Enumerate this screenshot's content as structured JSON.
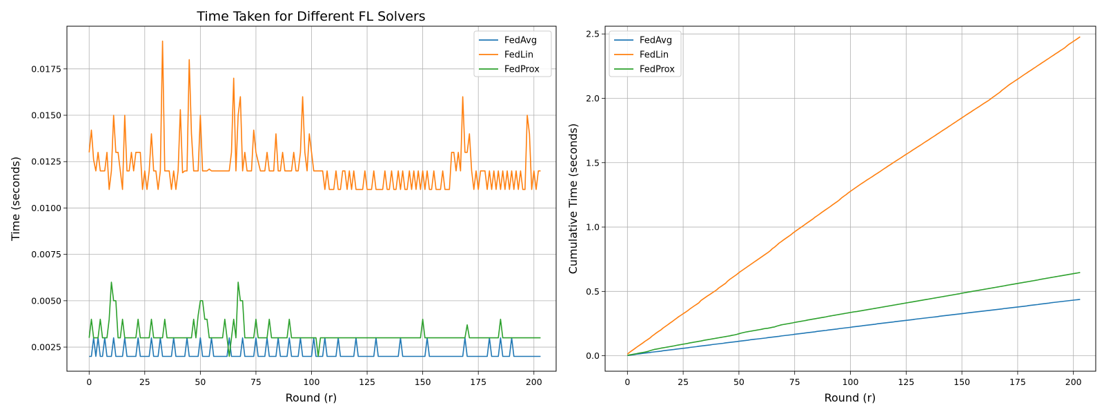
{
  "chart_data": [
    {
      "type": "line",
      "title": "Time Taken for Different FL Solvers",
      "xlabel": "Round (r)",
      "ylabel": "Time (seconds)",
      "xlim": [
        -10,
        210
      ],
      "ylim": [
        0.0012,
        0.0198
      ],
      "xticks": [
        0,
        25,
        50,
        75,
        100,
        125,
        150,
        175,
        200
      ],
      "xtick_labels": [
        "0",
        "25",
        "50",
        "75",
        "100",
        "125",
        "150",
        "175",
        "200"
      ],
      "yticks": [
        0.0025,
        0.005,
        0.0075,
        0.01,
        0.0125,
        0.015,
        0.0175
      ],
      "ytick_labels": [
        "0.0025",
        "0.0050",
        "0.0075",
        "0.0100",
        "0.0125",
        "0.0150",
        "0.0175"
      ],
      "grid": true,
      "legend": "top-right",
      "series": [
        {
          "name": "FedAvg",
          "color": "#1f77b4",
          "x_start": 0,
          "values": [
            0.002,
            0.002,
            0.003,
            0.002,
            0.003,
            0.002,
            0.002,
            0.003,
            0.002,
            0.002,
            0.002,
            0.003,
            0.002,
            0.002,
            0.002,
            0.002,
            0.003,
            0.002,
            0.002,
            0.002,
            0.002,
            0.002,
            0.003,
            0.002,
            0.002,
            0.002,
            0.002,
            0.002,
            0.003,
            0.002,
            0.002,
            0.002,
            0.003,
            0.002,
            0.002,
            0.002,
            0.002,
            0.002,
            0.003,
            0.002,
            0.002,
            0.002,
            0.002,
            0.002,
            0.003,
            0.002,
            0.002,
            0.002,
            0.002,
            0.002,
            0.003,
            0.002,
            0.002,
            0.002,
            0.002,
            0.003,
            0.002,
            0.002,
            0.002,
            0.002,
            0.002,
            0.002,
            0.002,
            0.003,
            0.002,
            0.002,
            0.002,
            0.002,
            0.002,
            0.003,
            0.002,
            0.002,
            0.002,
            0.002,
            0.002,
            0.003,
            0.002,
            0.002,
            0.002,
            0.002,
            0.003,
            0.002,
            0.002,
            0.002,
            0.002,
            0.003,
            0.002,
            0.002,
            0.002,
            0.002,
            0.003,
            0.002,
            0.002,
            0.002,
            0.002,
            0.003,
            0.002,
            0.002,
            0.002,
            0.002,
            0.002,
            0.003,
            0.002,
            0.002,
            0.002,
            0.002,
            0.003,
            0.002,
            0.002,
            0.002,
            0.002,
            0.002,
            0.003,
            0.002,
            0.002,
            0.002,
            0.002,
            0.002,
            0.002,
            0.002,
            0.003,
            0.002,
            0.002,
            0.002,
            0.002,
            0.002,
            0.002,
            0.002,
            0.002,
            0.003,
            0.002,
            0.002,
            0.002,
            0.002,
            0.002,
            0.002,
            0.002,
            0.002,
            0.002,
            0.002,
            0.003,
            0.002,
            0.002,
            0.002,
            0.002,
            0.002,
            0.002,
            0.002,
            0.002,
            0.002,
            0.002,
            0.002,
            0.003,
            0.002,
            0.002,
            0.002,
            0.002,
            0.002,
            0.002,
            0.002,
            0.002,
            0.002,
            0.002,
            0.002,
            0.002,
            0.002,
            0.002,
            0.002,
            0.002,
            0.003,
            0.002,
            0.002,
            0.002,
            0.002,
            0.002,
            0.002,
            0.002,
            0.002,
            0.002,
            0.002,
            0.003,
            0.002,
            0.002,
            0.002,
            0.002,
            0.003,
            0.002,
            0.002,
            0.002,
            0.002,
            0.003,
            0.002,
            0.002,
            0.002,
            0.002,
            0.002,
            0.002,
            0.002,
            0.002,
            0.002,
            0.002,
            0.002,
            0.002,
            0.002
          ]
        },
        {
          "name": "FedLin",
          "color": "#ff7f0e",
          "x_start": 0,
          "values": [
            0.013,
            0.0142,
            0.0126,
            0.012,
            0.013,
            0.012,
            0.012,
            0.012,
            0.013,
            0.011,
            0.012,
            0.015,
            0.013,
            0.013,
            0.012,
            0.011,
            0.015,
            0.012,
            0.012,
            0.013,
            0.012,
            0.013,
            0.013,
            0.013,
            0.011,
            0.012,
            0.011,
            0.012,
            0.014,
            0.012,
            0.012,
            0.011,
            0.012,
            0.019,
            0.012,
            0.012,
            0.012,
            0.011,
            0.012,
            0.011,
            0.012,
            0.0153,
            0.0119,
            0.012,
            0.012,
            0.018,
            0.014,
            0.012,
            0.012,
            0.012,
            0.015,
            0.012,
            0.012,
            0.012,
            0.0121,
            0.012,
            0.012,
            0.012,
            0.012,
            0.012,
            0.012,
            0.012,
            0.012,
            0.012,
            0.013,
            0.017,
            0.012,
            0.015,
            0.016,
            0.012,
            0.013,
            0.012,
            0.012,
            0.012,
            0.0142,
            0.013,
            0.0125,
            0.012,
            0.012,
            0.012,
            0.013,
            0.012,
            0.012,
            0.012,
            0.014,
            0.012,
            0.012,
            0.013,
            0.012,
            0.012,
            0.012,
            0.012,
            0.013,
            0.012,
            0.012,
            0.013,
            0.016,
            0.013,
            0.012,
            0.014,
            0.013,
            0.012,
            0.012,
            0.012,
            0.012,
            0.012,
            0.011,
            0.012,
            0.011,
            0.011,
            0.011,
            0.012,
            0.011,
            0.011,
            0.012,
            0.012,
            0.011,
            0.012,
            0.011,
            0.012,
            0.011,
            0.011,
            0.011,
            0.011,
            0.012,
            0.011,
            0.011,
            0.011,
            0.012,
            0.011,
            0.011,
            0.011,
            0.011,
            0.012,
            0.011,
            0.011,
            0.012,
            0.011,
            0.011,
            0.012,
            0.011,
            0.012,
            0.011,
            0.011,
            0.012,
            0.011,
            0.012,
            0.011,
            0.012,
            0.011,
            0.012,
            0.011,
            0.012,
            0.011,
            0.011,
            0.012,
            0.011,
            0.011,
            0.011,
            0.012,
            0.011,
            0.011,
            0.011,
            0.013,
            0.013,
            0.012,
            0.013,
            0.012,
            0.016,
            0.013,
            0.013,
            0.014,
            0.012,
            0.011,
            0.012,
            0.011,
            0.012,
            0.012,
            0.012,
            0.011,
            0.012,
            0.011,
            0.012,
            0.011,
            0.012,
            0.011,
            0.012,
            0.011,
            0.012,
            0.011,
            0.012,
            0.011,
            0.012,
            0.011,
            0.012,
            0.011,
            0.011,
            0.015,
            0.014,
            0.011,
            0.012,
            0.011,
            0.012,
            0.012
          ]
        },
        {
          "name": "FedProx",
          "color": "#2ca02c",
          "x_start": 0,
          "values": [
            0.003,
            0.004,
            0.003,
            0.003,
            0.003,
            0.004,
            0.003,
            0.003,
            0.003,
            0.004,
            0.006,
            0.005,
            0.005,
            0.003,
            0.003,
            0.004,
            0.003,
            0.003,
            0.003,
            0.003,
            0.003,
            0.003,
            0.004,
            0.003,
            0.003,
            0.003,
            0.003,
            0.003,
            0.004,
            0.003,
            0.003,
            0.003,
            0.003,
            0.003,
            0.004,
            0.003,
            0.003,
            0.003,
            0.003,
            0.003,
            0.003,
            0.003,
            0.003,
            0.003,
            0.003,
            0.003,
            0.003,
            0.004,
            0.003,
            0.0042,
            0.005,
            0.005,
            0.004,
            0.004,
            0.003,
            0.003,
            0.003,
            0.003,
            0.003,
            0.003,
            0.003,
            0.004,
            0.003,
            0.002,
            0.003,
            0.004,
            0.003,
            0.006,
            0.005,
            0.005,
            0.003,
            0.003,
            0.003,
            0.003,
            0.003,
            0.004,
            0.003,
            0.003,
            0.003,
            0.003,
            0.003,
            0.004,
            0.003,
            0.003,
            0.003,
            0.003,
            0.003,
            0.003,
            0.003,
            0.003,
            0.004,
            0.003,
            0.003,
            0.003,
            0.003,
            0.003,
            0.003,
            0.003,
            0.003,
            0.003,
            0.003,
            0.003,
            0.003,
            0.002,
            0.003,
            0.003,
            0.003,
            0.003,
            0.003,
            0.003,
            0.003,
            0.003,
            0.003,
            0.003,
            0.003,
            0.003,
            0.003,
            0.003,
            0.003,
            0.003,
            0.003,
            0.003,
            0.003,
            0.003,
            0.003,
            0.003,
            0.003,
            0.003,
            0.003,
            0.003,
            0.003,
            0.003,
            0.003,
            0.003,
            0.003,
            0.003,
            0.003,
            0.003,
            0.003,
            0.003,
            0.003,
            0.003,
            0.003,
            0.003,
            0.003,
            0.003,
            0.003,
            0.003,
            0.003,
            0.003,
            0.004,
            0.003,
            0.003,
            0.003,
            0.003,
            0.003,
            0.003,
            0.003,
            0.003,
            0.003,
            0.003,
            0.003,
            0.003,
            0.003,
            0.003,
            0.003,
            0.003,
            0.003,
            0.003,
            0.003,
            0.0037,
            0.003,
            0.003,
            0.003,
            0.003,
            0.003,
            0.003,
            0.003,
            0.003,
            0.003,
            0.003,
            0.003,
            0.003,
            0.003,
            0.003,
            0.004,
            0.003,
            0.003,
            0.003,
            0.003,
            0.003,
            0.003,
            0.003,
            0.003,
            0.003,
            0.003,
            0.003,
            0.003,
            0.003,
            0.003,
            0.003,
            0.003,
            0.003,
            0.003
          ]
        }
      ]
    },
    {
      "type": "line",
      "title": "",
      "xlabel": "Round (r)",
      "ylabel": "Cumulative Time (seconds)",
      "xlim": [
        -10,
        210
      ],
      "ylim": [
        -0.12,
        2.56
      ],
      "xticks": [
        0,
        25,
        50,
        75,
        100,
        125,
        150,
        175,
        200
      ],
      "xtick_labels": [
        "0",
        "25",
        "50",
        "75",
        "100",
        "125",
        "150",
        "175",
        "200"
      ],
      "yticks": [
        0.0,
        0.5,
        1.0,
        1.5,
        2.0,
        2.5
      ],
      "ytick_labels": [
        "0.0",
        "0.5",
        "1.0",
        "1.5",
        "2.0",
        "2.5"
      ],
      "grid": true,
      "legend": "top-left",
      "cumulative_of": [
        0,
        1,
        2
      ],
      "series": [
        {
          "name": "FedAvg",
          "color": "#1f77b4"
        },
        {
          "name": "FedLin",
          "color": "#ff7f0e"
        },
        {
          "name": "FedProx",
          "color": "#2ca02c"
        }
      ]
    }
  ]
}
